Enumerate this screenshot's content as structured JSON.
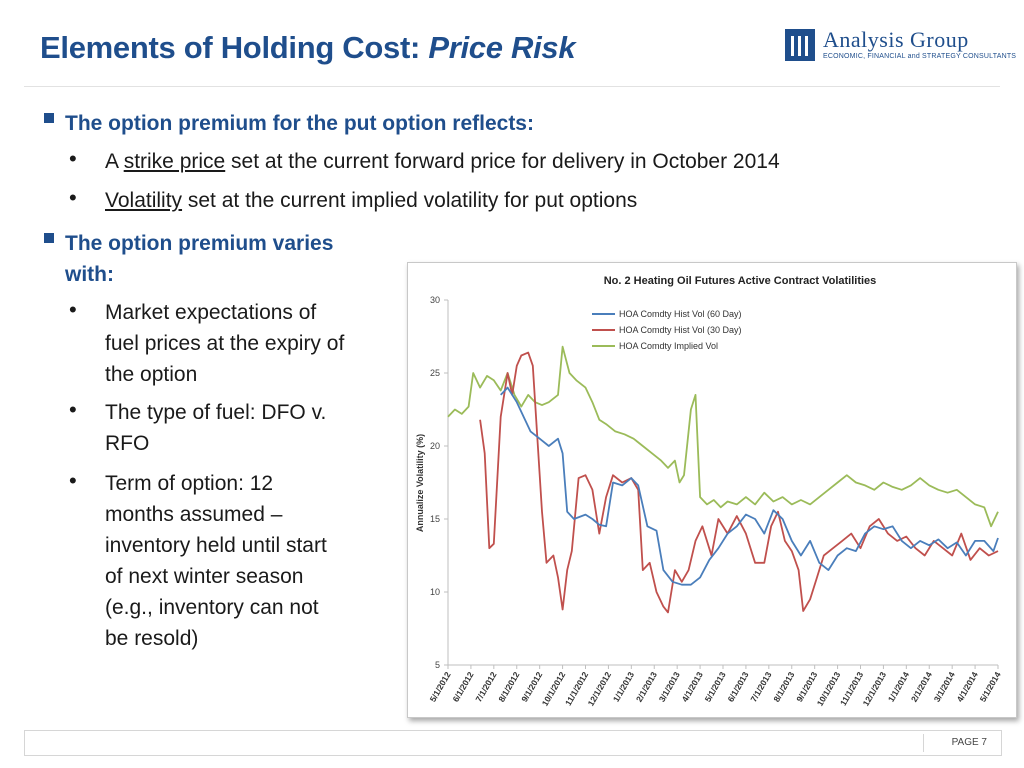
{
  "header": {
    "title_main": "Elements of Holding Cost: ",
    "title_italic": "Price Risk",
    "logo_name": "Analysis Group",
    "logo_tagline": "ECONOMIC, FINANCIAL and STRATEGY CONSULTANTS"
  },
  "bullets": {
    "b1": {
      "heading": "The option premium for the put option reflects:",
      "items": [
        {
          "prefix": "A ",
          "underlined": "strike price",
          "rest": " set at the current forward price for delivery in October 2014"
        },
        {
          "prefix": "",
          "underlined": "Volatility",
          "rest": " set at the current implied volatility for put options"
        }
      ]
    },
    "b2": {
      "heading_lines": [
        "The option premium varies",
        "with:"
      ],
      "items": [
        {
          "lines": [
            "Market expectations of",
            "fuel prices at the expiry of",
            "the option"
          ]
        },
        {
          "lines": [
            "The type of fuel: DFO v.",
            "RFO"
          ]
        },
        {
          "lines": [
            "Term of option: 12",
            "months assumed –",
            "inventory held until start",
            "of next winter season",
            "(e.g., inventory can not",
            "be resold)"
          ]
        }
      ]
    }
  },
  "footer": {
    "page_label": "PAGE 7"
  },
  "chart_data": {
    "type": "line",
    "title": "No. 2 Heating Oil Futures Active Contract Volatilities",
    "ylabel": "Annualize Volatility (%)",
    "xlabel": "",
    "ylim": [
      5,
      30
    ],
    "yticks": [
      5,
      10,
      15,
      20,
      25,
      30
    ],
    "x": [
      "5/1/2012",
      "6/1/2012",
      "7/1/2012",
      "8/1/2012",
      "9/1/2012",
      "10/1/2012",
      "11/1/2012",
      "12/1/2012",
      "1/1/2013",
      "2/1/2013",
      "3/1/2013",
      "4/1/2013",
      "5/1/2013",
      "6/1/2013",
      "7/1/2013",
      "8/1/2013",
      "9/1/2013",
      "10/1/2013",
      "11/1/2013",
      "12/1/2013",
      "1/1/2014",
      "2/1/2014",
      "3/1/2014",
      "4/1/2014",
      "5/1/2014"
    ],
    "grid": false,
    "legend_position": "top-center",
    "series": [
      {
        "name": "HOA Comdty Hist Vol (60 Day)",
        "color": "#4a7ebb",
        "points": [
          [
            2.3,
            23.5
          ],
          [
            2.6,
            24.0
          ],
          [
            3.0,
            23.0
          ],
          [
            3.3,
            22.0
          ],
          [
            3.6,
            21.0
          ],
          [
            4.0,
            20.5
          ],
          [
            4.4,
            20.0
          ],
          [
            4.8,
            20.5
          ],
          [
            5.0,
            19.5
          ],
          [
            5.2,
            15.5
          ],
          [
            5.5,
            15.0
          ],
          [
            6.0,
            15.3
          ],
          [
            6.3,
            15.0
          ],
          [
            6.6,
            14.6
          ],
          [
            6.9,
            14.5
          ],
          [
            7.2,
            17.5
          ],
          [
            7.6,
            17.3
          ],
          [
            8.0,
            17.8
          ],
          [
            8.3,
            17.3
          ],
          [
            8.7,
            14.5
          ],
          [
            9.1,
            14.2
          ],
          [
            9.4,
            11.5
          ],
          [
            9.8,
            10.7
          ],
          [
            10.2,
            10.5
          ],
          [
            10.6,
            10.5
          ],
          [
            11.0,
            11.0
          ],
          [
            11.4,
            12.2
          ],
          [
            11.8,
            13.0
          ],
          [
            12.2,
            14.0
          ],
          [
            12.6,
            14.5
          ],
          [
            13.0,
            15.3
          ],
          [
            13.4,
            15.0
          ],
          [
            13.8,
            14.0
          ],
          [
            14.2,
            15.6
          ],
          [
            14.6,
            15.0
          ],
          [
            15.0,
            13.5
          ],
          [
            15.4,
            12.5
          ],
          [
            15.8,
            13.5
          ],
          [
            16.2,
            12.0
          ],
          [
            16.6,
            11.5
          ],
          [
            17.0,
            12.5
          ],
          [
            17.4,
            13.0
          ],
          [
            17.8,
            12.8
          ],
          [
            18.2,
            14.0
          ],
          [
            18.6,
            14.5
          ],
          [
            19.0,
            14.3
          ],
          [
            19.4,
            14.5
          ],
          [
            19.8,
            13.5
          ],
          [
            20.2,
            13.0
          ],
          [
            20.6,
            13.5
          ],
          [
            21.0,
            13.2
          ],
          [
            21.4,
            13.6
          ],
          [
            21.8,
            13.0
          ],
          [
            22.2,
            13.4
          ],
          [
            22.6,
            12.5
          ],
          [
            23.0,
            13.5
          ],
          [
            23.4,
            13.5
          ],
          [
            23.8,
            12.8
          ],
          [
            24.0,
            13.7
          ]
        ]
      },
      {
        "name": "HOA Comdty Hist Vol (30 Day)",
        "color": "#c0504d",
        "points": [
          [
            1.4,
            21.8
          ],
          [
            1.6,
            19.5
          ],
          [
            1.8,
            13.0
          ],
          [
            2.0,
            13.3
          ],
          [
            2.3,
            22.0
          ],
          [
            2.6,
            25.0
          ],
          [
            2.8,
            23.5
          ],
          [
            3.0,
            25.5
          ],
          [
            3.2,
            26.2
          ],
          [
            3.5,
            26.4
          ],
          [
            3.7,
            25.5
          ],
          [
            3.9,
            20.5
          ],
          [
            4.1,
            15.5
          ],
          [
            4.3,
            12.0
          ],
          [
            4.6,
            12.5
          ],
          [
            4.8,
            11.0
          ],
          [
            5.0,
            8.8
          ],
          [
            5.2,
            11.5
          ],
          [
            5.4,
            12.8
          ],
          [
            5.7,
            17.8
          ],
          [
            6.0,
            18.0
          ],
          [
            6.3,
            17.0
          ],
          [
            6.6,
            14.0
          ],
          [
            6.9,
            16.5
          ],
          [
            7.2,
            18.0
          ],
          [
            7.6,
            17.5
          ],
          [
            8.0,
            17.8
          ],
          [
            8.3,
            17.0
          ],
          [
            8.5,
            11.5
          ],
          [
            8.8,
            12.0
          ],
          [
            9.1,
            10.0
          ],
          [
            9.4,
            9.0
          ],
          [
            9.6,
            8.6
          ],
          [
            9.9,
            11.5
          ],
          [
            10.2,
            10.7
          ],
          [
            10.5,
            11.5
          ],
          [
            10.8,
            13.5
          ],
          [
            11.1,
            14.5
          ],
          [
            11.5,
            12.5
          ],
          [
            11.8,
            15.0
          ],
          [
            12.2,
            14.0
          ],
          [
            12.6,
            15.2
          ],
          [
            13.0,
            14.0
          ],
          [
            13.4,
            12.0
          ],
          [
            13.8,
            12.0
          ],
          [
            14.1,
            14.5
          ],
          [
            14.4,
            15.5
          ],
          [
            14.7,
            13.5
          ],
          [
            15.0,
            12.8
          ],
          [
            15.3,
            11.5
          ],
          [
            15.5,
            8.7
          ],
          [
            15.8,
            9.5
          ],
          [
            16.1,
            11.0
          ],
          [
            16.4,
            12.5
          ],
          [
            16.8,
            13.0
          ],
          [
            17.2,
            13.5
          ],
          [
            17.6,
            14.0
          ],
          [
            18.0,
            13.0
          ],
          [
            18.4,
            14.5
          ],
          [
            18.8,
            15.0
          ],
          [
            19.2,
            14.0
          ],
          [
            19.6,
            13.5
          ],
          [
            20.0,
            13.8
          ],
          [
            20.4,
            13.0
          ],
          [
            20.8,
            12.5
          ],
          [
            21.2,
            13.5
          ],
          [
            21.6,
            13.0
          ],
          [
            22.0,
            12.5
          ],
          [
            22.4,
            14.0
          ],
          [
            22.8,
            12.2
          ],
          [
            23.2,
            13.0
          ],
          [
            23.6,
            12.5
          ],
          [
            24.0,
            12.8
          ]
        ]
      },
      {
        "name": "HOA Comdty Implied Vol",
        "color": "#9bbb59",
        "points": [
          [
            0,
            22.0
          ],
          [
            0.3,
            22.5
          ],
          [
            0.6,
            22.2
          ],
          [
            0.9,
            22.7
          ],
          [
            1.1,
            25.0
          ],
          [
            1.4,
            24.0
          ],
          [
            1.7,
            24.8
          ],
          [
            2.0,
            24.5
          ],
          [
            2.3,
            23.8
          ],
          [
            2.6,
            25.0
          ],
          [
            2.9,
            23.5
          ],
          [
            3.2,
            22.7
          ],
          [
            3.5,
            23.5
          ],
          [
            3.8,
            23.0
          ],
          [
            4.1,
            22.8
          ],
          [
            4.4,
            23.0
          ],
          [
            4.8,
            23.5
          ],
          [
            5.0,
            26.8
          ],
          [
            5.3,
            25.0
          ],
          [
            5.6,
            24.5
          ],
          [
            6.0,
            24.0
          ],
          [
            6.3,
            23.0
          ],
          [
            6.6,
            21.8
          ],
          [
            6.9,
            21.5
          ],
          [
            7.3,
            21.0
          ],
          [
            7.7,
            20.8
          ],
          [
            8.1,
            20.5
          ],
          [
            8.5,
            20.0
          ],
          [
            8.9,
            19.5
          ],
          [
            9.3,
            19.0
          ],
          [
            9.6,
            18.5
          ],
          [
            9.9,
            19.0
          ],
          [
            10.1,
            17.5
          ],
          [
            10.3,
            18.0
          ],
          [
            10.6,
            22.5
          ],
          [
            10.8,
            23.5
          ],
          [
            11.0,
            16.5
          ],
          [
            11.3,
            16.0
          ],
          [
            11.6,
            16.3
          ],
          [
            11.9,
            15.8
          ],
          [
            12.2,
            16.2
          ],
          [
            12.6,
            16.0
          ],
          [
            13.0,
            16.5
          ],
          [
            13.4,
            16.0
          ],
          [
            13.8,
            16.8
          ],
          [
            14.2,
            16.2
          ],
          [
            14.6,
            16.5
          ],
          [
            15.0,
            16.0
          ],
          [
            15.4,
            16.3
          ],
          [
            15.8,
            16.0
          ],
          [
            16.2,
            16.5
          ],
          [
            16.6,
            17.0
          ],
          [
            17.0,
            17.5
          ],
          [
            17.4,
            18.0
          ],
          [
            17.8,
            17.5
          ],
          [
            18.2,
            17.3
          ],
          [
            18.6,
            17.0
          ],
          [
            19.0,
            17.5
          ],
          [
            19.4,
            17.2
          ],
          [
            19.8,
            17.0
          ],
          [
            20.2,
            17.3
          ],
          [
            20.6,
            17.8
          ],
          [
            21.0,
            17.3
          ],
          [
            21.4,
            17.0
          ],
          [
            21.8,
            16.8
          ],
          [
            22.2,
            17.0
          ],
          [
            22.6,
            16.5
          ],
          [
            23.0,
            16.0
          ],
          [
            23.4,
            15.8
          ],
          [
            23.7,
            14.5
          ],
          [
            24.0,
            15.5
          ]
        ]
      }
    ]
  }
}
